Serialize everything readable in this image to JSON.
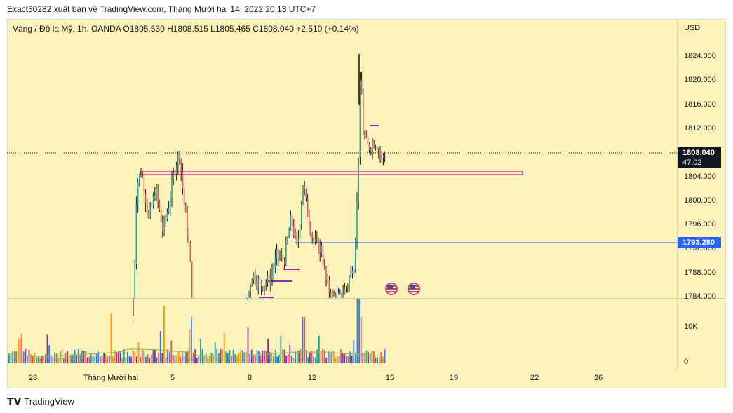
{
  "header": "Exact30282 xuất bản về TradingView.com, Tháng Mười hai 14, 2022 20:13 UTC+7",
  "symbol_line": "Vàng / Đô la Mỹ, 1h, OANDA  O1805.530  H1808.515  L1805.465  C1808.040  +2.510 (+0.14%)",
  "currency": "USD",
  "price_ticks": [
    "1824.000",
    "1820.000",
    "1816.000",
    "1812.000",
    "1804.000",
    "1800.000",
    "1796.000",
    "1792.000",
    "1788.000",
    "1784.000"
  ],
  "volume_ticks": [
    "10K",
    "0"
  ],
  "current_price": "1808.040",
  "countdown": "47:02",
  "blue_line_price": "1793.280",
  "time_ticks": [
    "28",
    "Tháng Mười hai",
    "5",
    "8",
    "12",
    "15",
    "19",
    "22",
    "26"
  ],
  "brand": "TradingView",
  "colors": {
    "bg": "#fbf3ba",
    "up": "#26a69a",
    "down": "#ef5350",
    "level": "#e040a0",
    "blue": "#2962ff",
    "candle": "#131722"
  },
  "icons": [
    "tv-logo-icon",
    "us-flag-icon"
  ],
  "chart_data": {
    "type": "candlestick",
    "y_range": [
      1783.5,
      1825.5
    ],
    "levels": [
      {
        "price": 1805.0,
        "x_from": 200,
        "x_to": 745
      },
      {
        "price": 1793.28,
        "x_from": 420,
        "x_to": 965
      }
    ],
    "volume_max": 18000
  }
}
